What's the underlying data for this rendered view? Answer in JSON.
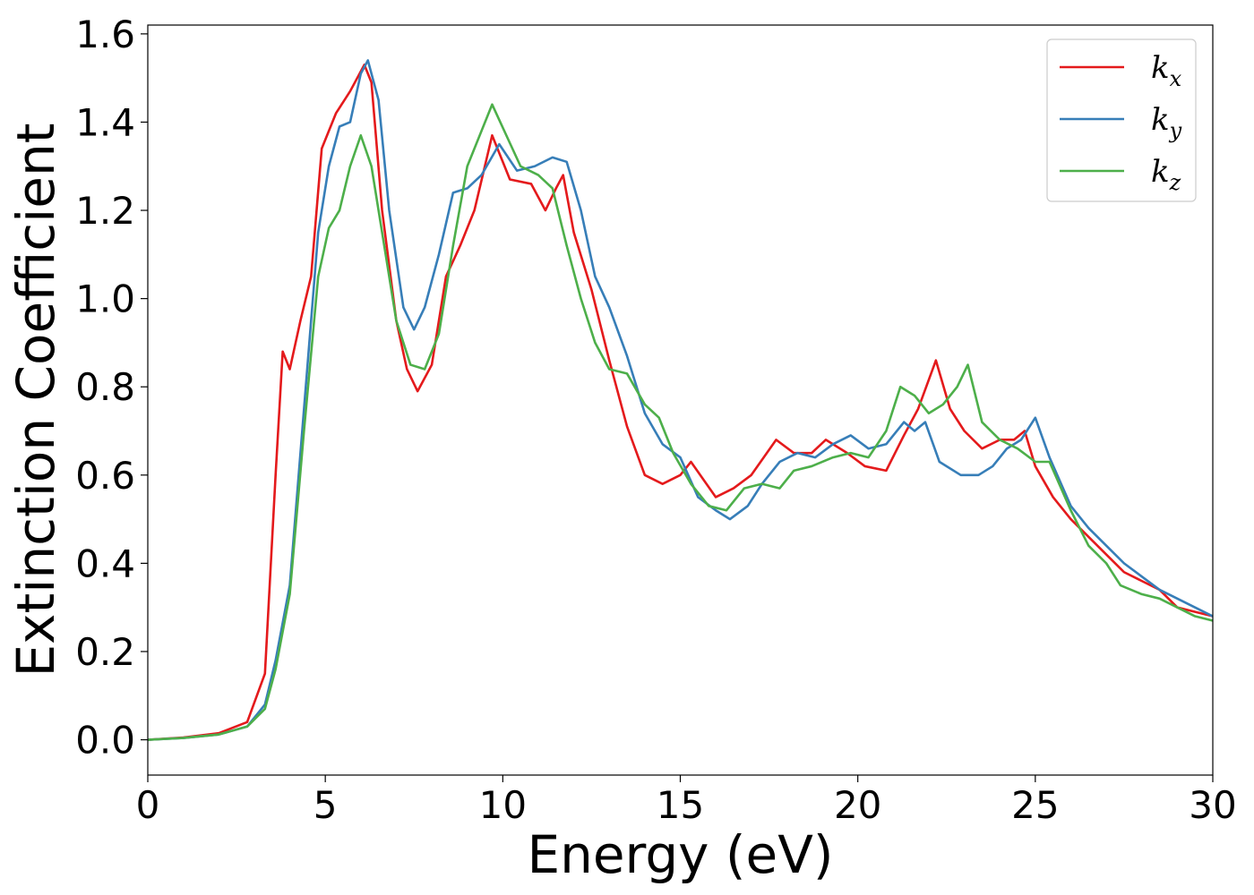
{
  "chart_data": {
    "type": "line",
    "xlabel": "Energy (eV)",
    "ylabel": "Extinction Coefficient",
    "xlim": [
      0,
      30
    ],
    "ylim": [
      -0.08,
      1.62
    ],
    "xticks": [
      0,
      5,
      10,
      15,
      20,
      25,
      30
    ],
    "yticks": [
      0.0,
      0.2,
      0.4,
      0.6,
      0.8,
      1.0,
      1.2,
      1.4,
      1.6
    ],
    "xtick_labels": [
      "0",
      "5",
      "10",
      "15",
      "20",
      "25",
      "30"
    ],
    "ytick_labels": [
      "0.0",
      "0.2",
      "0.4",
      "0.6",
      "0.8",
      "1.0",
      "1.2",
      "1.4",
      "1.6"
    ],
    "grid": false,
    "legend_position": "top-right",
    "series": [
      {
        "name": "k",
        "subscript": "x",
        "color": "#e41a1c",
        "points": [
          [
            0,
            0
          ],
          [
            1,
            0.005
          ],
          [
            2,
            0.015
          ],
          [
            2.8,
            0.04
          ],
          [
            3.3,
            0.15
          ],
          [
            3.6,
            0.6
          ],
          [
            3.8,
            0.88
          ],
          [
            4.0,
            0.84
          ],
          [
            4.3,
            0.95
          ],
          [
            4.6,
            1.05
          ],
          [
            4.9,
            1.34
          ],
          [
            5.3,
            1.42
          ],
          [
            5.7,
            1.47
          ],
          [
            6.1,
            1.53
          ],
          [
            6.3,
            1.49
          ],
          [
            6.6,
            1.2
          ],
          [
            7.0,
            0.95
          ],
          [
            7.3,
            0.84
          ],
          [
            7.6,
            0.79
          ],
          [
            8.0,
            0.85
          ],
          [
            8.4,
            1.05
          ],
          [
            8.8,
            1.12
          ],
          [
            9.2,
            1.2
          ],
          [
            9.7,
            1.37
          ],
          [
            10.2,
            1.27
          ],
          [
            10.8,
            1.26
          ],
          [
            11.2,
            1.2
          ],
          [
            11.5,
            1.25
          ],
          [
            11.7,
            1.28
          ],
          [
            12.0,
            1.15
          ],
          [
            12.5,
            1.02
          ],
          [
            13.0,
            0.86
          ],
          [
            13.5,
            0.71
          ],
          [
            14.0,
            0.6
          ],
          [
            14.5,
            0.58
          ],
          [
            15.0,
            0.6
          ],
          [
            15.3,
            0.63
          ],
          [
            16.0,
            0.55
          ],
          [
            16.5,
            0.57
          ],
          [
            17.0,
            0.6
          ],
          [
            17.7,
            0.68
          ],
          [
            18.2,
            0.65
          ],
          [
            18.7,
            0.65
          ],
          [
            19.1,
            0.68
          ],
          [
            19.7,
            0.65
          ],
          [
            20.2,
            0.62
          ],
          [
            20.8,
            0.61
          ],
          [
            21.3,
            0.69
          ],
          [
            21.7,
            0.75
          ],
          [
            22.2,
            0.86
          ],
          [
            22.6,
            0.75
          ],
          [
            23.0,
            0.7
          ],
          [
            23.5,
            0.66
          ],
          [
            24.0,
            0.68
          ],
          [
            24.4,
            0.68
          ],
          [
            24.7,
            0.7
          ],
          [
            25.0,
            0.62
          ],
          [
            25.5,
            0.55
          ],
          [
            26.0,
            0.5
          ],
          [
            26.5,
            0.46
          ],
          [
            27.0,
            0.42
          ],
          [
            27.5,
            0.38
          ],
          [
            28.0,
            0.36
          ],
          [
            28.5,
            0.34
          ],
          [
            29.0,
            0.3
          ],
          [
            29.5,
            0.29
          ],
          [
            30,
            0.28
          ]
        ]
      },
      {
        "name": "k",
        "subscript": "y",
        "color": "#377eb8",
        "points": [
          [
            0,
            0
          ],
          [
            1,
            0.004
          ],
          [
            2,
            0.012
          ],
          [
            2.8,
            0.03
          ],
          [
            3.3,
            0.08
          ],
          [
            3.6,
            0.18
          ],
          [
            4.0,
            0.35
          ],
          [
            4.4,
            0.75
          ],
          [
            4.8,
            1.15
          ],
          [
            5.1,
            1.3
          ],
          [
            5.4,
            1.39
          ],
          [
            5.7,
            1.4
          ],
          [
            6.0,
            1.51
          ],
          [
            6.2,
            1.54
          ],
          [
            6.5,
            1.45
          ],
          [
            6.8,
            1.2
          ],
          [
            7.2,
            0.98
          ],
          [
            7.5,
            0.93
          ],
          [
            7.8,
            0.98
          ],
          [
            8.2,
            1.1
          ],
          [
            8.6,
            1.24
          ],
          [
            9.0,
            1.25
          ],
          [
            9.4,
            1.28
          ],
          [
            9.9,
            1.35
          ],
          [
            10.4,
            1.29
          ],
          [
            10.9,
            1.3
          ],
          [
            11.4,
            1.32
          ],
          [
            11.8,
            1.31
          ],
          [
            12.2,
            1.2
          ],
          [
            12.6,
            1.05
          ],
          [
            13.0,
            0.98
          ],
          [
            13.5,
            0.87
          ],
          [
            14.0,
            0.74
          ],
          [
            14.5,
            0.67
          ],
          [
            15.0,
            0.64
          ],
          [
            15.5,
            0.55
          ],
          [
            16.0,
            0.52
          ],
          [
            16.4,
            0.5
          ],
          [
            16.9,
            0.53
          ],
          [
            17.3,
            0.58
          ],
          [
            17.8,
            0.63
          ],
          [
            18.3,
            0.65
          ],
          [
            18.8,
            0.64
          ],
          [
            19.3,
            0.67
          ],
          [
            19.8,
            0.69
          ],
          [
            20.3,
            0.66
          ],
          [
            20.8,
            0.67
          ],
          [
            21.3,
            0.72
          ],
          [
            21.6,
            0.7
          ],
          [
            21.9,
            0.72
          ],
          [
            22.3,
            0.63
          ],
          [
            22.9,
            0.6
          ],
          [
            23.4,
            0.6
          ],
          [
            23.8,
            0.62
          ],
          [
            24.2,
            0.66
          ],
          [
            24.6,
            0.68
          ],
          [
            25.0,
            0.73
          ],
          [
            25.4,
            0.64
          ],
          [
            26.0,
            0.53
          ],
          [
            26.5,
            0.48
          ],
          [
            27.0,
            0.44
          ],
          [
            27.5,
            0.4
          ],
          [
            28.0,
            0.37
          ],
          [
            28.5,
            0.34
          ],
          [
            29.0,
            0.32
          ],
          [
            29.5,
            0.3
          ],
          [
            30,
            0.28
          ]
        ]
      },
      {
        "name": "k",
        "subscript": "z",
        "color": "#4daf4a",
        "points": [
          [
            0,
            0
          ],
          [
            1,
            0.004
          ],
          [
            2,
            0.012
          ],
          [
            2.8,
            0.03
          ],
          [
            3.3,
            0.07
          ],
          [
            3.6,
            0.16
          ],
          [
            4.0,
            0.33
          ],
          [
            4.4,
            0.7
          ],
          [
            4.8,
            1.05
          ],
          [
            5.1,
            1.16
          ],
          [
            5.4,
            1.2
          ],
          [
            5.7,
            1.3
          ],
          [
            6.0,
            1.37
          ],
          [
            6.3,
            1.3
          ],
          [
            6.7,
            1.1
          ],
          [
            7.0,
            0.95
          ],
          [
            7.4,
            0.85
          ],
          [
            7.8,
            0.84
          ],
          [
            8.2,
            0.92
          ],
          [
            8.6,
            1.12
          ],
          [
            9.0,
            1.3
          ],
          [
            9.4,
            1.38
          ],
          [
            9.7,
            1.44
          ],
          [
            10.1,
            1.37
          ],
          [
            10.5,
            1.3
          ],
          [
            11.0,
            1.28
          ],
          [
            11.4,
            1.25
          ],
          [
            11.8,
            1.12
          ],
          [
            12.2,
            1.0
          ],
          [
            12.6,
            0.9
          ],
          [
            13.0,
            0.84
          ],
          [
            13.5,
            0.83
          ],
          [
            14.0,
            0.76
          ],
          [
            14.4,
            0.73
          ],
          [
            14.8,
            0.65
          ],
          [
            15.3,
            0.58
          ],
          [
            15.8,
            0.53
          ],
          [
            16.3,
            0.52
          ],
          [
            16.8,
            0.57
          ],
          [
            17.3,
            0.58
          ],
          [
            17.8,
            0.57
          ],
          [
            18.2,
            0.61
          ],
          [
            18.7,
            0.62
          ],
          [
            19.3,
            0.64
          ],
          [
            19.8,
            0.65
          ],
          [
            20.3,
            0.64
          ],
          [
            20.8,
            0.7
          ],
          [
            21.2,
            0.8
          ],
          [
            21.6,
            0.78
          ],
          [
            22.0,
            0.74
          ],
          [
            22.4,
            0.76
          ],
          [
            22.8,
            0.8
          ],
          [
            23.1,
            0.85
          ],
          [
            23.5,
            0.72
          ],
          [
            24.0,
            0.68
          ],
          [
            24.5,
            0.66
          ],
          [
            25.0,
            0.63
          ],
          [
            25.4,
            0.63
          ],
          [
            26.0,
            0.52
          ],
          [
            26.5,
            0.44
          ],
          [
            27.0,
            0.4
          ],
          [
            27.4,
            0.35
          ],
          [
            28.0,
            0.33
          ],
          [
            28.5,
            0.32
          ],
          [
            29.0,
            0.3
          ],
          [
            29.5,
            0.28
          ],
          [
            30,
            0.27
          ]
        ]
      }
    ]
  }
}
